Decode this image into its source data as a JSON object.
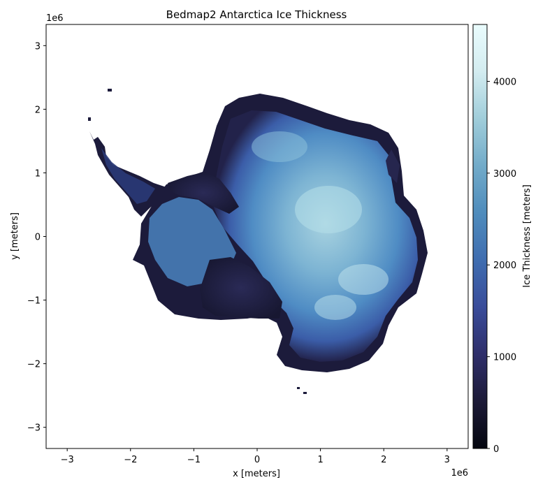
{
  "chart_data": {
    "type": "heatmap",
    "title": "Bedmap2 Antarctica Ice Thickness",
    "xlabel": "x [meters]",
    "ylabel": "y [meters]",
    "x_offset_label": "1e6",
    "y_offset_label": "1e6",
    "xlim": [
      -3333000,
      3333000
    ],
    "ylim": [
      -3333000,
      3333000
    ],
    "x_ticks": [
      {
        "value": -3,
        "label": "−3"
      },
      {
        "value": -2,
        "label": "−2"
      },
      {
        "value": -1,
        "label": "−1"
      },
      {
        "value": 0,
        "label": "0"
      },
      {
        "value": 1,
        "label": "1"
      },
      {
        "value": 2,
        "label": "2"
      },
      {
        "value": 3,
        "label": "3"
      }
    ],
    "y_ticks": [
      {
        "value": 3,
        "label": "3"
      },
      {
        "value": 2,
        "label": "2"
      },
      {
        "value": 1,
        "label": "1"
      },
      {
        "value": 0,
        "label": "0"
      },
      {
        "value": -1,
        "label": "−1"
      },
      {
        "value": -2,
        "label": "−2"
      },
      {
        "value": -3,
        "label": "−3"
      }
    ],
    "colorbar": {
      "label": "Ice Thickness [meters]",
      "min": 0,
      "max": 4620,
      "ticks": [
        {
          "value": 0,
          "label": "0"
        },
        {
          "value": 1000,
          "label": "1000"
        },
        {
          "value": 2000,
          "label": "2000"
        },
        {
          "value": 3000,
          "label": "3000"
        },
        {
          "value": 4000,
          "label": "4000"
        }
      ],
      "colormap": "ice",
      "stops": [
        "#04060f",
        "#1c1a37",
        "#2e2e6a",
        "#394c9a",
        "#3f6db0",
        "#4f8cbc",
        "#72abc9",
        "#a0cdda",
        "#d3ecf0",
        "#eafcfd"
      ]
    },
    "grid": false,
    "background": "#ffffff",
    "no_data_color": "#ffffff"
  }
}
